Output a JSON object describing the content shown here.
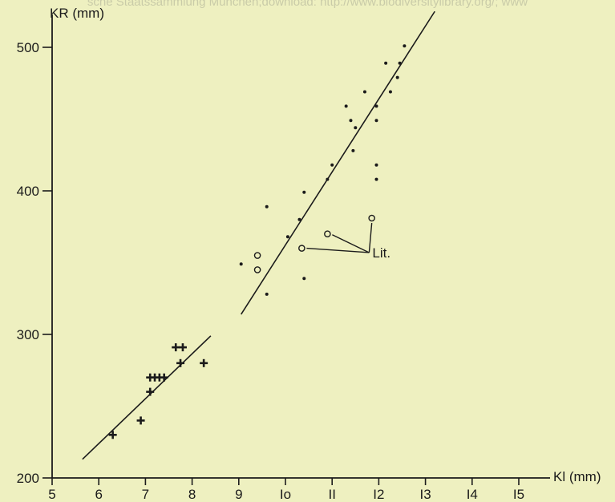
{
  "watermark": "sche Staatssammlung München;download: http://www.biodiversitylibrary.org/; www",
  "chart_data": {
    "type": "scatter",
    "title": "",
    "xlabel": "Kl (mm)",
    "ylabel": "KR (mm)",
    "xlim": [
      5,
      15
    ],
    "ylim": [
      200,
      520
    ],
    "x_ticks": [
      5,
      6,
      7,
      8,
      9,
      10,
      11,
      12,
      13,
      14,
      15
    ],
    "x_tick_labels": [
      "5",
      "6",
      "7",
      "8",
      "9",
      "Io",
      "II",
      "I2",
      "I3",
      "I4",
      "I5"
    ],
    "y_ticks": [
      200,
      300,
      400,
      500
    ],
    "y_tick_labels": [
      "200",
      "300",
      "400",
      "500"
    ],
    "grid": false,
    "annotation": "Lit.",
    "series": [
      {
        "marker": "cross",
        "points": [
          [
            6.3,
            230
          ],
          [
            6.9,
            240
          ],
          [
            7.1,
            260
          ],
          [
            7.1,
            270
          ],
          [
            7.2,
            270
          ],
          [
            7.3,
            270
          ],
          [
            7.4,
            270
          ],
          [
            7.65,
            291
          ],
          [
            7.8,
            291
          ],
          [
            7.75,
            280
          ],
          [
            8.25,
            280
          ]
        ]
      },
      {
        "marker": "dot",
        "points": [
          [
            9.05,
            349
          ],
          [
            9.6,
            328
          ],
          [
            9.6,
            389
          ],
          [
            10.05,
            368
          ],
          [
            10.3,
            380
          ],
          [
            10.4,
            399
          ],
          [
            10.4,
            339
          ],
          [
            10.9,
            408
          ],
          [
            11.0,
            418
          ],
          [
            11.3,
            459
          ],
          [
            11.4,
            449
          ],
          [
            11.45,
            428
          ],
          [
            11.5,
            444
          ],
          [
            11.7,
            469
          ],
          [
            11.95,
            459
          ],
          [
            11.95,
            449
          ],
          [
            11.95,
            418
          ],
          [
            11.95,
            408
          ],
          [
            12.15,
            489
          ],
          [
            12.25,
            469
          ],
          [
            12.4,
            479
          ],
          [
            12.45,
            489
          ],
          [
            12.55,
            501
          ]
        ]
      },
      {
        "marker": "open-circle",
        "points": [
          [
            9.4,
            355
          ],
          [
            9.4,
            345
          ],
          [
            10.35,
            360
          ],
          [
            10.9,
            370
          ],
          [
            11.85,
            381
          ]
        ]
      }
    ],
    "regression_lines": [
      {
        "x": [
          5.65,
          8.4
        ],
        "y": [
          213,
          299
        ]
      },
      {
        "x": [
          9.05,
          13.2
        ],
        "y": [
          314,
          525
        ]
      }
    ]
  }
}
